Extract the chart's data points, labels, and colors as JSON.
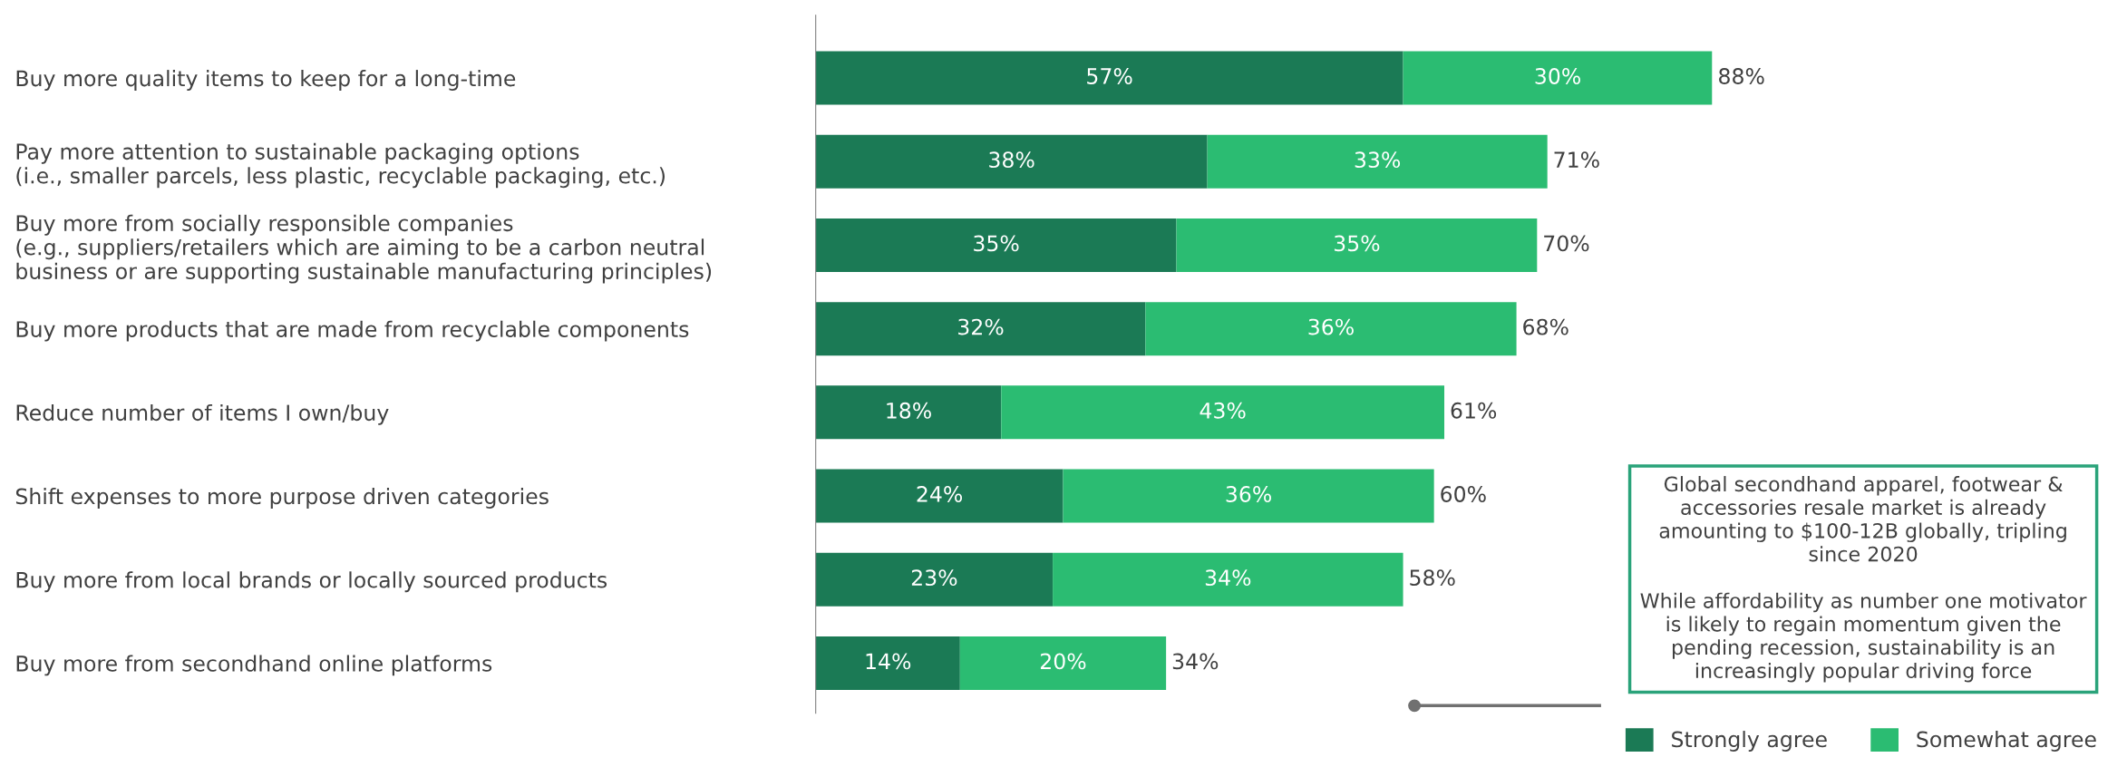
{
  "chart_data": {
    "type": "bar",
    "orientation": "horizontal",
    "stacked": true,
    "legend": "bottom right",
    "grid": false,
    "categories": [
      "Buy more quality items to keep for a long-time",
      "Pay more attention to sustainable packaging options\n(i.e., smaller parcels, less plastic, recyclable packaging, etc.)",
      "Buy more from socially responsible companies\n(e.g., suppliers/retailers which are aiming to be a carbon neutral\nbusiness or are supporting sustainable manufacturing principles)",
      "Buy more products that are made from recyclable components",
      "Reduce number of items I own/buy",
      "Shift expenses to more purpose driven categories",
      "Buy more from local brands or locally sourced products",
      "Buy more from secondhand online platforms"
    ],
    "series": [
      {
        "name": "Strongly agree",
        "color": "#1b7a55",
        "values": [
          57,
          38,
          35,
          32,
          18,
          24,
          23,
          14
        ],
        "value_labels": [
          "57%",
          "38%",
          "35%",
          "32%",
          "18%",
          "24%",
          "23%",
          "14%"
        ]
      },
      {
        "name": "Somewhat agree",
        "color": "#2bbc72",
        "values": [
          30,
          33,
          35,
          36,
          43,
          36,
          34,
          20
        ],
        "value_labels": [
          "30%",
          "33%",
          "35%",
          "36%",
          "43%",
          "36%",
          "34%",
          "20%"
        ]
      }
    ],
    "totals": [
      "88%",
      "71%",
      "70%",
      "68%",
      "61%",
      "60%",
      "58%",
      "34%"
    ],
    "annotations": [
      "Global secondhand apparel, footwear &\naccessories resale market is already\namounting to $100-12B globally, tripling\nsince 2020\n\nWhile affordability as number one motivator\nis likely to regain momentum given the\npending recession, sustainability is an\nincreasingly popular driving force"
    ]
  }
}
